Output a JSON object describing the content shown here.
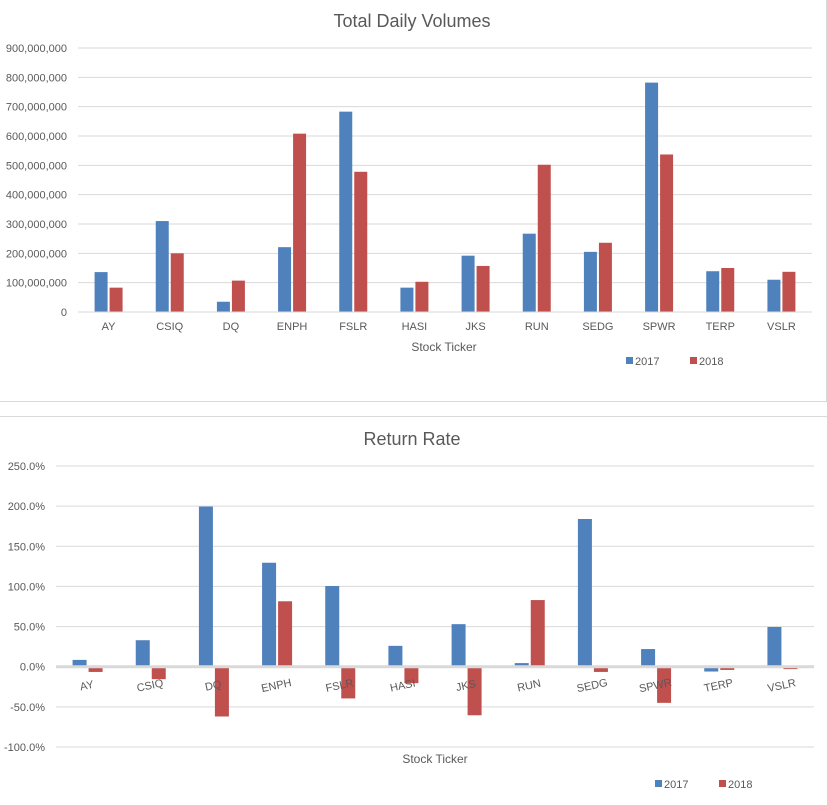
{
  "chart_data": [
    {
      "type": "bar",
      "title": "Total Daily Volumes",
      "xlabel": "Stock Ticker",
      "ylabel": "",
      "categories": [
        "AY",
        "CSIQ",
        "DQ",
        "ENPH",
        "FSLR",
        "HASI",
        "JKS",
        "RUN",
        "SEDG",
        "SPWR",
        "TERP",
        "VSLR"
      ],
      "series": [
        {
          "name": "2017",
          "color": "#4f81bd",
          "values": [
            136000000,
            310000000,
            35000000,
            221000000,
            683000000,
            83000000,
            192000000,
            267000000,
            205000000,
            782000000,
            139000000,
            110000000
          ]
        },
        {
          "name": "2018",
          "color": "#c0504d",
          "values": [
            83000000,
            200000000,
            107000000,
            608000000,
            478000000,
            103000000,
            157000000,
            502000000,
            236000000,
            537000000,
            150000000,
            137000000
          ]
        }
      ],
      "ylim": [
        0,
        900000000
      ],
      "yticks": [
        0,
        100000000,
        200000000,
        300000000,
        400000000,
        500000000,
        600000000,
        700000000,
        800000000,
        900000000
      ],
      "ytick_labels": [
        "0",
        "100,000,000",
        "200,000,000",
        "300,000,000",
        "400,000,000",
        "500,000,000",
        "600,000,000",
        "700,000,000",
        "800,000,000",
        "900,000,000"
      ],
      "grid": true,
      "legend": "bottom-right"
    },
    {
      "type": "bar",
      "title": "Return Rate",
      "xlabel": "Stock Ticker",
      "ylabel": "",
      "categories": [
        "AY",
        "CSIQ",
        "DQ",
        "ENPH",
        "FSLR",
        "HASI",
        "JKS",
        "RUN",
        "SEDG",
        "SPWR",
        "TERP",
        "VSLR"
      ],
      "series": [
        {
          "name": "2017",
          "color": "#4f81bd",
          "values": [
            8.5,
            33.0,
            199.5,
            129.5,
            100.5,
            26.0,
            53.0,
            4.5,
            184.0,
            22.0,
            -6.0,
            49.5
          ]
        },
        {
          "name": "2018",
          "color": "#c0504d",
          "values": [
            -6.5,
            -15.5,
            -62.0,
            81.5,
            -39.5,
            -20.5,
            -60.5,
            83.0,
            -6.5,
            -45.0,
            -4.0,
            -3.0
          ]
        }
      ],
      "ylim": [
        -100,
        250
      ],
      "yticks": [
        -100,
        -50,
        0,
        50,
        100,
        150,
        200,
        250
      ],
      "ytick_labels": [
        "-100.0%",
        "-50.0%",
        "0.0%",
        "50.0%",
        "100.0%",
        "150.0%",
        "200.0%",
        "250.0%"
      ],
      "grid": true,
      "legend": "bottom-right"
    }
  ]
}
